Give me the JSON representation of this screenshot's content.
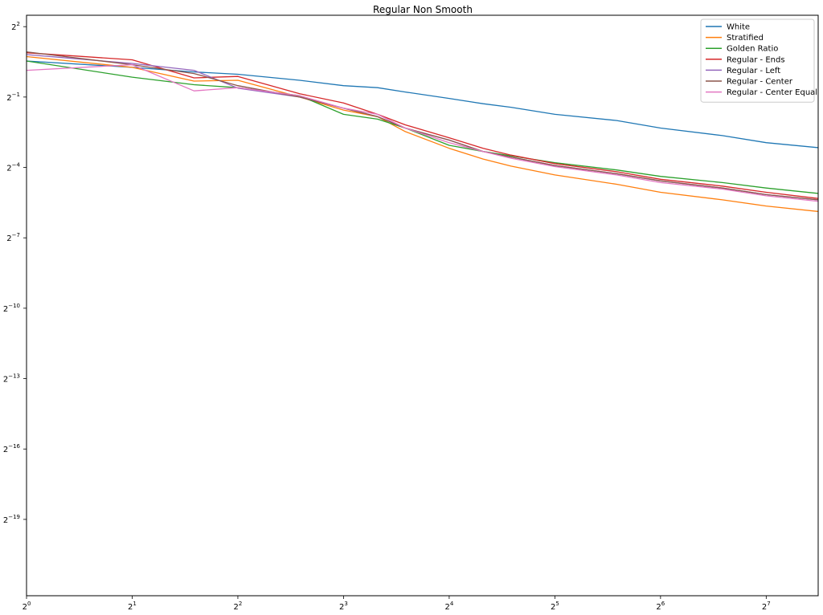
{
  "chart_data": {
    "type": "line",
    "title": "Regular Non Smooth",
    "xlabel": "",
    "ylabel": "",
    "x_scale": "log2",
    "y_scale": "log2",
    "xlim": [
      1,
      180
    ],
    "ylim": [
      2e-07,
      5.6
    ],
    "x_ticks": [
      {
        "value": 1,
        "base": "2",
        "exp": "0"
      },
      {
        "value": 2,
        "base": "2",
        "exp": "1"
      },
      {
        "value": 4,
        "base": "2",
        "exp": "2"
      },
      {
        "value": 8,
        "base": "2",
        "exp": "3"
      },
      {
        "value": 16,
        "base": "2",
        "exp": "4"
      },
      {
        "value": 32,
        "base": "2",
        "exp": "5"
      },
      {
        "value": 64,
        "base": "2",
        "exp": "6"
      },
      {
        "value": 128,
        "base": "2",
        "exp": "7"
      }
    ],
    "y_ticks": [
      {
        "value": 4,
        "base": "2",
        "exp": "2"
      },
      {
        "value": 0.5,
        "base": "2",
        "exp": "−1"
      },
      {
        "value": 0.0625,
        "base": "2",
        "exp": "−4"
      },
      {
        "value": 0.0078125,
        "base": "2",
        "exp": "−7"
      },
      {
        "value": 0.0009765625,
        "base": "2",
        "exp": "−10"
      },
      {
        "value": 0.0001220703125,
        "base": "2",
        "exp": "−13"
      },
      {
        "value": 1.52587890625e-05,
        "base": "2",
        "exp": "−16"
      },
      {
        "value": 1.9073486328125e-06,
        "base": "2",
        "exp": "−19"
      }
    ],
    "legend_position": "top-right",
    "grid": false,
    "series": [
      {
        "name": "White",
        "color": "#1f77b4",
        "x": [
          1,
          2,
          3,
          4,
          6,
          8,
          10,
          12,
          16,
          20,
          24,
          32,
          48,
          64,
          96,
          128,
          180
        ],
        "y": [
          1.45,
          1.2,
          1.05,
          0.98,
          0.82,
          0.7,
          0.66,
          0.58,
          0.48,
          0.41,
          0.37,
          0.3,
          0.25,
          0.2,
          0.16,
          0.13,
          0.112
        ]
      },
      {
        "name": "Stratified",
        "color": "#ff7f0e",
        "x": [
          1,
          2,
          3,
          4,
          6,
          8,
          10,
          12,
          16,
          20,
          24,
          32,
          48,
          64,
          96,
          128,
          180
        ],
        "y": [
          1.65,
          1.2,
          0.8,
          0.82,
          0.5,
          0.34,
          0.28,
          0.18,
          0.11,
          0.08,
          0.065,
          0.05,
          0.038,
          0.03,
          0.024,
          0.02,
          0.017
        ]
      },
      {
        "name": "Golden Ratio",
        "color": "#2ca02c",
        "x": [
          1,
          2,
          3,
          4,
          6,
          8,
          10,
          12,
          16,
          20,
          24,
          32,
          48,
          64,
          96,
          128,
          180
        ],
        "y": [
          1.45,
          0.9,
          0.72,
          0.66,
          0.52,
          0.3,
          0.26,
          0.2,
          0.12,
          0.1,
          0.088,
          0.072,
          0.058,
          0.048,
          0.04,
          0.034,
          0.029
        ]
      },
      {
        "name": "Regular - Ends",
        "color": "#d62728",
        "x": [
          1,
          2,
          3,
          4,
          6,
          8,
          10,
          12,
          16,
          20,
          24,
          32,
          48,
          64,
          96,
          128,
          180
        ],
        "y": [
          1.85,
          1.5,
          0.88,
          0.92,
          0.55,
          0.42,
          0.3,
          0.22,
          0.15,
          0.11,
          0.09,
          0.07,
          0.055,
          0.044,
          0.036,
          0.03,
          0.025
        ]
      },
      {
        "name": "Regular - Left",
        "color": "#9467bd",
        "x": [
          1,
          2,
          3,
          4,
          6,
          8,
          10,
          12,
          16,
          20,
          24,
          32,
          48,
          64,
          96,
          128,
          180
        ],
        "y": [
          1.75,
          1.35,
          1.1,
          0.65,
          0.5,
          0.36,
          0.28,
          0.2,
          0.14,
          0.1,
          0.085,
          0.066,
          0.052,
          0.042,
          0.034,
          0.028,
          0.024
        ]
      },
      {
        "name": "Regular - Center",
        "color": "#8c564b",
        "x": [
          1,
          2,
          3,
          4,
          6,
          8,
          10,
          12,
          16,
          20,
          24,
          32,
          48,
          64,
          96,
          128,
          180
        ],
        "y": [
          1.9,
          1.3,
          1.0,
          0.7,
          0.5,
          0.36,
          0.28,
          0.2,
          0.14,
          0.1,
          0.085,
          0.066,
          0.052,
          0.042,
          0.034,
          0.028,
          0.024
        ]
      },
      {
        "name": "Regular - Center Equal",
        "color": "#e377c2",
        "x": [
          1,
          2,
          3,
          4,
          6,
          8,
          10,
          12,
          16,
          20,
          24,
          32,
          48,
          64,
          96,
          128,
          180
        ],
        "y": [
          1.1,
          1.3,
          0.6,
          0.66,
          0.52,
          0.36,
          0.3,
          0.2,
          0.13,
          0.1,
          0.082,
          0.064,
          0.05,
          0.04,
          0.033,
          0.027,
          0.023
        ]
      }
    ]
  }
}
